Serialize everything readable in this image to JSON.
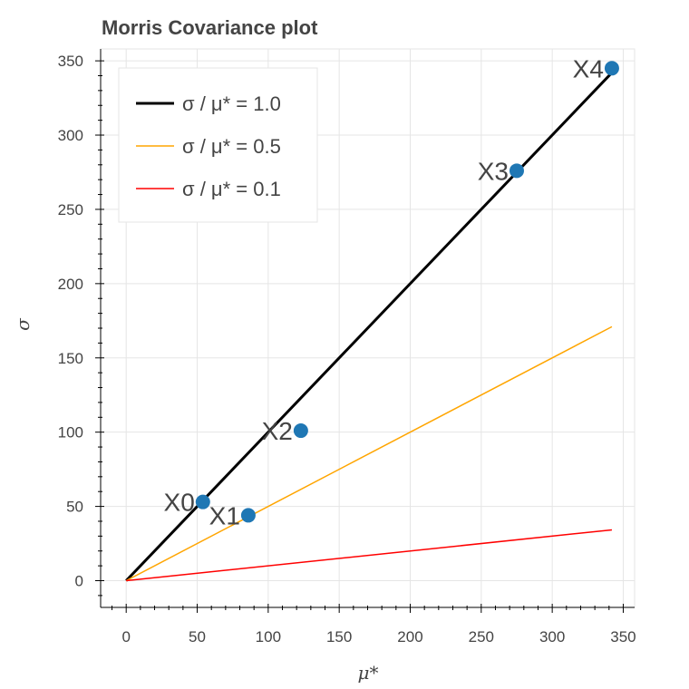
{
  "chart_data": {
    "type": "scatter",
    "title": "Morris Covariance plot",
    "xlabel": "μ*",
    "ylabel": "σ",
    "xlim": [
      -18,
      358
    ],
    "ylim": [
      -18,
      358
    ],
    "xticks": [
      0,
      50,
      100,
      150,
      200,
      250,
      300,
      350
    ],
    "yticks": [
      0,
      50,
      100,
      150,
      200,
      250,
      300,
      350
    ],
    "grid": true,
    "legend_position": "top-left",
    "points": [
      {
        "label": "X0",
        "x": 54,
        "y": 53
      },
      {
        "label": "X1",
        "x": 86,
        "y": 44
      },
      {
        "label": "X2",
        "x": 123,
        "y": 101
      },
      {
        "label": "X3",
        "x": 275,
        "y": 276
      },
      {
        "label": "X4",
        "x": 342,
        "y": 345
      }
    ],
    "point_color": "#1f77b4",
    "reference_lines": [
      {
        "name": "σ / μ* = 1.0",
        "slope": 1.0,
        "color": "#000000",
        "width": 3,
        "x_range": [
          0,
          342
        ]
      },
      {
        "name": "σ / μ* = 0.5",
        "slope": 0.5,
        "color": "#ffa500",
        "width": 1.5,
        "x_range": [
          0,
          342
        ]
      },
      {
        "name": "σ / μ* = 0.1",
        "slope": 0.1,
        "color": "#ff0000",
        "width": 1.5,
        "x_range": [
          0,
          342
        ]
      }
    ]
  }
}
